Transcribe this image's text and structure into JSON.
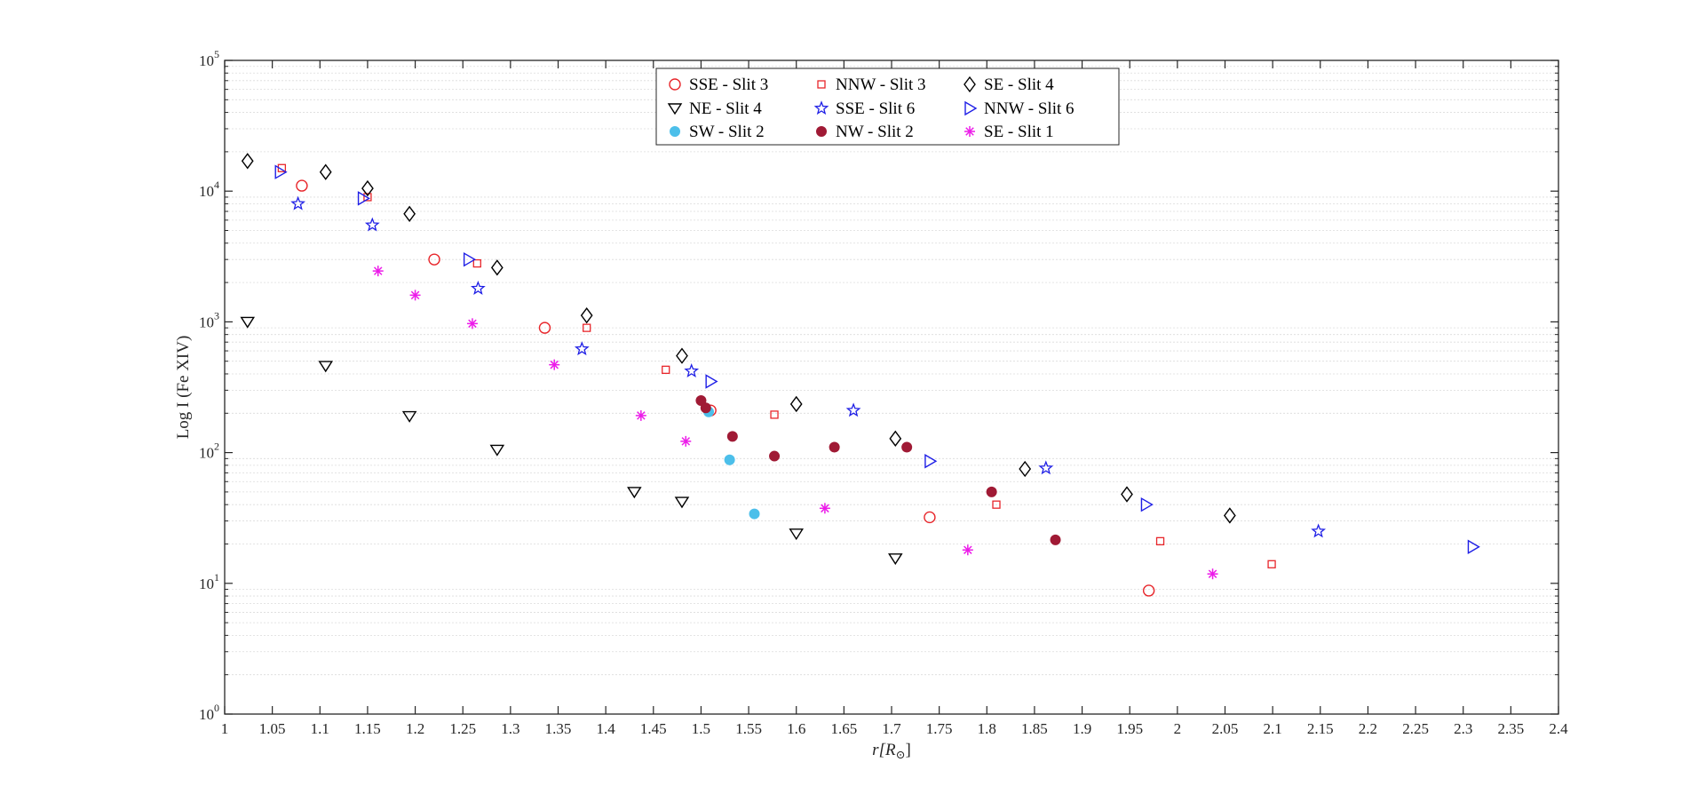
{
  "chart_data": {
    "type": "scatter",
    "title": "",
    "xlabel": "r[R",
    "xlabel_sub": "⊙",
    "xlabel_close": "]",
    "ylabel": "Log I (Fe XIV)",
    "xlim": [
      1,
      2.4
    ],
    "ylim": [
      1,
      100000
    ],
    "yscale": "log",
    "grid": "y-minor",
    "legend_position": "top-center",
    "x_ticks": [
      "1",
      "1.05",
      "1.1",
      "1.15",
      "1.2",
      "1.25",
      "1.3",
      "1.35",
      "1.4",
      "1.45",
      "1.5",
      "1.55",
      "1.6",
      "1.65",
      "1.7",
      "1.75",
      "1.8",
      "1.85",
      "1.9",
      "1.95",
      "2",
      "2.05",
      "2.1",
      "2.15",
      "2.2",
      "2.25",
      "2.3",
      "2.35",
      "2.4"
    ],
    "y_ticks": [
      {
        "base": "10",
        "exp": "0",
        "value": 1
      },
      {
        "base": "10",
        "exp": "1",
        "value": 10
      },
      {
        "base": "10",
        "exp": "2",
        "value": 100
      },
      {
        "base": "10",
        "exp": "3",
        "value": 1000
      },
      {
        "base": "10",
        "exp": "4",
        "value": 10000
      },
      {
        "base": "10",
        "exp": "5",
        "value": 100000
      }
    ],
    "series": [
      {
        "name": "SSE - Slit 3",
        "marker": "circle-open",
        "color": "#e8262b",
        "x": [
          1.081,
          1.22,
          1.336,
          1.51,
          1.74,
          1.97
        ],
        "y": [
          11000,
          3000,
          900,
          210,
          32,
          8.8
        ]
      },
      {
        "name": "NNW - Slit 3",
        "marker": "square-open",
        "color": "#e8262b",
        "x": [
          1.06,
          1.15,
          1.265,
          1.38,
          1.463,
          1.577,
          1.81,
          1.982,
          2.099
        ],
        "y": [
          15000,
          9000,
          2800,
          900,
          430,
          195,
          40,
          21,
          14
        ]
      },
      {
        "name": "SE - Slit 4",
        "marker": "diamond-open",
        "color": "#000000",
        "x": [
          1.024,
          1.106,
          1.15,
          1.194,
          1.286,
          1.38,
          1.48,
          1.6,
          1.704,
          1.84,
          1.947,
          2.055
        ],
        "y": [
          17000,
          14000,
          10500,
          6700,
          2600,
          1120,
          550,
          235,
          128,
          75,
          48,
          33
        ]
      },
      {
        "name": "NE - Slit 4",
        "marker": "triangle-down-open",
        "color": "#000000",
        "x": [
          1.024,
          1.106,
          1.194,
          1.286,
          1.43,
          1.48,
          1.6,
          1.704
        ],
        "y": [
          1000,
          460,
          190,
          105,
          50,
          42,
          24,
          15.5
        ]
      },
      {
        "name": "SSE - Slit 6",
        "marker": "star-open",
        "color": "#1f1fe6",
        "x": [
          1.077,
          1.155,
          1.266,
          1.375,
          1.49,
          1.66,
          1.862,
          2.148
        ],
        "y": [
          8000,
          5500,
          1800,
          620,
          420,
          210,
          76,
          25
        ]
      },
      {
        "name": "NNW - Slit 6",
        "marker": "triangle-right-open",
        "color": "#1f1fe6",
        "x": [
          1.058,
          1.145,
          1.256,
          1.51,
          1.74,
          1.967,
          2.31
        ],
        "y": [
          14000,
          8800,
          3000,
          350,
          86,
          40,
          19
        ]
      },
      {
        "name": "SW - Slit 2",
        "marker": "circle-filled",
        "color": "#4cbfea",
        "x": [
          1.508,
          1.53,
          1.556
        ],
        "y": [
          205,
          88,
          34
        ]
      },
      {
        "name": "NW - Slit 2",
        "marker": "circle-filled",
        "color": "#a01a35",
        "x": [
          1.5,
          1.505,
          1.533,
          1.577,
          1.64,
          1.716,
          1.805,
          1.872
        ],
        "y": [
          250,
          220,
          133,
          94,
          110,
          110,
          50,
          21.5
        ]
      },
      {
        "name": "SE - Slit 1",
        "marker": "asterisk",
        "color": "#ec1ce9",
        "x": [
          1.161,
          1.2,
          1.26,
          1.346,
          1.437,
          1.484,
          1.63,
          1.78,
          2.037
        ],
        "y": [
          2450,
          1600,
          970,
          470,
          192,
          122,
          37.5,
          18,
          11.8
        ]
      }
    ]
  }
}
